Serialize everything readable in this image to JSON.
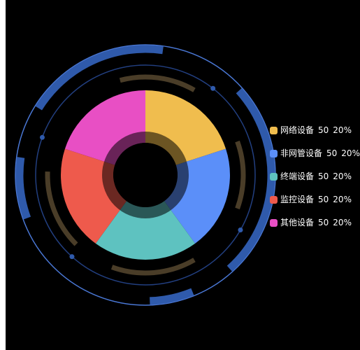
{
  "chart_data": {
    "type": "pie",
    "categories": [
      "网络设备",
      "非网管设备",
      "终端设备",
      "监控设备",
      "其他设备"
    ],
    "values": [
      50,
      50,
      50,
      50,
      50
    ],
    "percents": [
      "20%",
      "20%",
      "20%",
      "20%",
      "20%"
    ],
    "colors": [
      "#f0bd4e",
      "#5b8ff9",
      "#5ec2c0",
      "#ee5a4c",
      "#e84fc4"
    ],
    "legend_position": "right"
  },
  "legend": [
    {
      "name": "网络设备",
      "value": "50",
      "percent": "20%",
      "color": "#f0bd4e"
    },
    {
      "name": "非网管设备",
      "value": "50",
      "percent": "20%",
      "color": "#5b8ff9"
    },
    {
      "name": "终端设备",
      "value": "50",
      "percent": "20%",
      "color": "#5ec2c0"
    },
    {
      "name": "监控设备",
      "value": "50",
      "percent": "20%",
      "color": "#ee5a4c"
    },
    {
      "name": "其他设备",
      "value": "50",
      "percent": "20%",
      "color": "#e84fc4"
    }
  ],
  "decoration_colors": {
    "outer_ring": "#2f5aab",
    "thin_ring": "#4a78d6",
    "inner_ring": "#223f80",
    "gold_arcs": "#4a3d28",
    "dots": "#2f5aab"
  }
}
